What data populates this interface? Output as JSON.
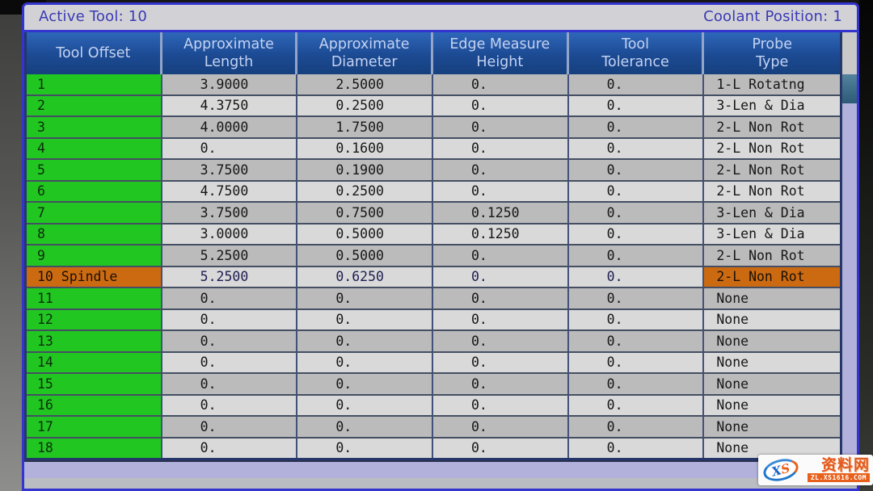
{
  "status_bar": {
    "active_tool_label": "Active Tool: 10",
    "coolant_label": "Coolant Position: 1"
  },
  "table": {
    "headers": [
      [
        "Tool Offset"
      ],
      [
        "Approximate",
        "Length"
      ],
      [
        "Approximate",
        "Diameter"
      ],
      [
        "Edge Measure",
        "Height"
      ],
      [
        "Tool",
        "Tolerance"
      ],
      [
        "Probe",
        "Type"
      ]
    ],
    "rows": [
      {
        "tool": "1",
        "length": "3.9000",
        "diameter": "2.5000",
        "edge": "0.",
        "tolerance": "0.",
        "probe": "1-L Rotatng",
        "active": false
      },
      {
        "tool": "2",
        "length": "4.3750",
        "diameter": "0.2500",
        "edge": "0.",
        "tolerance": "0.",
        "probe": "3-Len & Dia",
        "active": false
      },
      {
        "tool": "3",
        "length": "4.0000",
        "diameter": "1.7500",
        "edge": "0.",
        "tolerance": "0.",
        "probe": "2-L Non Rot",
        "active": false
      },
      {
        "tool": "4",
        "length": "0.",
        "diameter": "0.1600",
        "edge": "0.",
        "tolerance": "0.",
        "probe": "2-L Non Rot",
        "active": false
      },
      {
        "tool": "5",
        "length": "3.7500",
        "diameter": "0.1900",
        "edge": "0.",
        "tolerance": "0.",
        "probe": "2-L Non Rot",
        "active": false
      },
      {
        "tool": "6",
        "length": "4.7500",
        "diameter": "0.2500",
        "edge": "0.",
        "tolerance": "0.",
        "probe": "2-L Non Rot",
        "active": false
      },
      {
        "tool": "7",
        "length": "3.7500",
        "diameter": "0.7500",
        "edge": "0.1250",
        "tolerance": "0.",
        "probe": "3-Len & Dia",
        "active": false
      },
      {
        "tool": "8",
        "length": "3.0000",
        "diameter": "0.5000",
        "edge": "0.1250",
        "tolerance": "0.",
        "probe": "3-Len & Dia",
        "active": false
      },
      {
        "tool": "9",
        "length": "5.2500",
        "diameter": "0.5000",
        "edge": "0.",
        "tolerance": "0.",
        "probe": "2-L Non Rot",
        "active": false
      },
      {
        "tool": "10 Spindle",
        "length": "5.2500",
        "diameter": "0.6250",
        "edge": "0.",
        "tolerance": "0.",
        "probe": "2-L Non Rot",
        "active": true
      },
      {
        "tool": "11",
        "length": "0.",
        "diameter": "0.",
        "edge": "0.",
        "tolerance": "0.",
        "probe": "None",
        "active": false
      },
      {
        "tool": "12",
        "length": "0.",
        "diameter": "0.",
        "edge": "0.",
        "tolerance": "0.",
        "probe": "None",
        "active": false
      },
      {
        "tool": "13",
        "length": "0.",
        "diameter": "0.",
        "edge": "0.",
        "tolerance": "0.",
        "probe": "None",
        "active": false
      },
      {
        "tool": "14",
        "length": "0.",
        "diameter": "0.",
        "edge": "0.",
        "tolerance": "0.",
        "probe": "None",
        "active": false
      },
      {
        "tool": "15",
        "length": "0.",
        "diameter": "0.",
        "edge": "0.",
        "tolerance": "0.",
        "probe": "None",
        "active": false
      },
      {
        "tool": "16",
        "length": "0.",
        "diameter": "0.",
        "edge": "0.",
        "tolerance": "0.",
        "probe": "None",
        "active": false
      },
      {
        "tool": "17",
        "length": "0.",
        "diameter": "0.",
        "edge": "0.",
        "tolerance": "0.",
        "probe": "None",
        "active": false
      },
      {
        "tool": "18",
        "length": "0.",
        "diameter": "0.",
        "edge": "0.",
        "tolerance": "0.",
        "probe": "None",
        "active": false
      }
    ]
  },
  "watermark": {
    "logo_x": "X",
    "logo_s": "S",
    "site_name": "资料网",
    "site_url": "ZL.XS1616.COM"
  },
  "colors": {
    "row_green": "#21c621",
    "active_orange": "#cc6a12",
    "active_lavender": "#b2b2de",
    "header_blue": "#1d4d9b",
    "panel_border_blue": "#3434ce",
    "status_text_blue": "#3a3ab4",
    "scroll_thumb_teal": "#54839e"
  }
}
